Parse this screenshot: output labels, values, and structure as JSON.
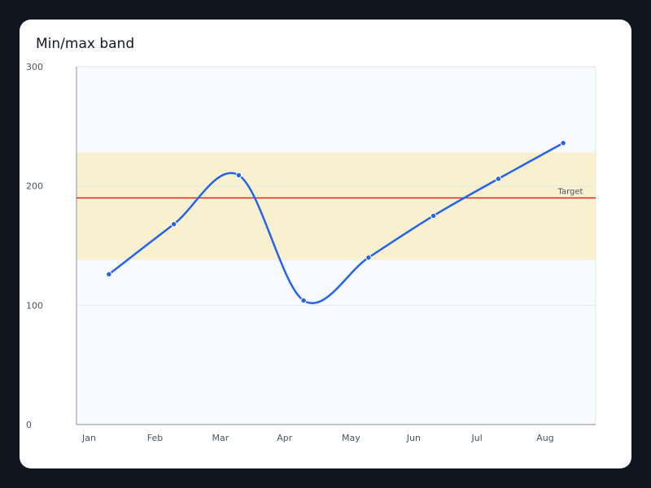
{
  "chart_data": {
    "type": "line",
    "title": "Min/max band",
    "xlabel": "",
    "ylabel": "",
    "categories": [
      "Jan",
      "Feb",
      "Mar",
      "Apr",
      "May",
      "Jun",
      "Jul",
      "Aug"
    ],
    "series": [
      {
        "values": [
          126,
          168,
          209,
          104,
          140,
          175,
          206,
          236
        ],
        "color": "#2563eb"
      }
    ],
    "band": {
      "min": 138,
      "max": 228,
      "color": "#f8f0cf"
    },
    "reference_line": {
      "label": "Target",
      "value": 190,
      "color": "#dc2626"
    },
    "ylim": [
      0,
      300
    ],
    "yticks": [
      0,
      100,
      200,
      300
    ],
    "grid": "horizontal",
    "legend": "none"
  },
  "colors": {
    "page_background": "#0f141f",
    "card": "#ffffff",
    "plot_background": "#f8faff",
    "axis": "#9ca3af"
  }
}
